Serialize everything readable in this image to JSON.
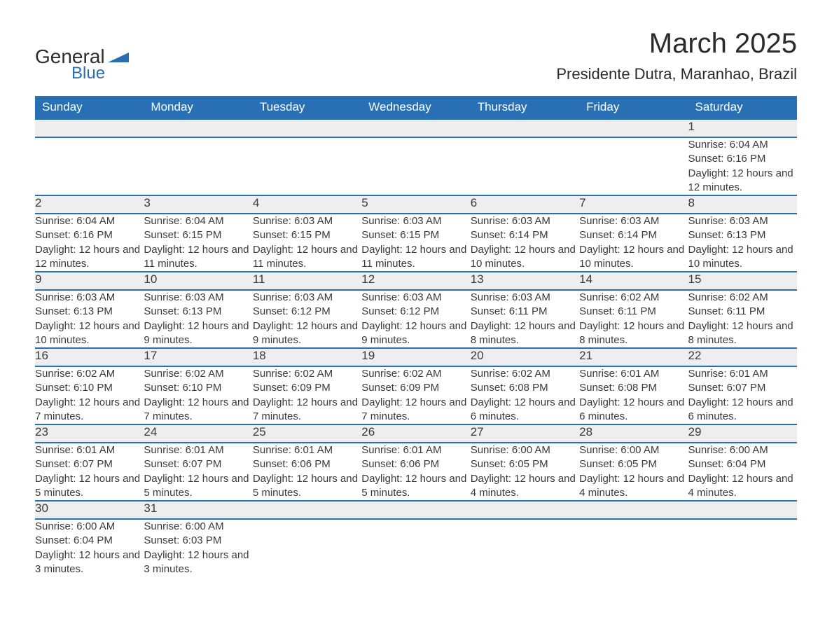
{
  "logo": {
    "text1": "General",
    "text2": "Blue",
    "color": "#296fb3"
  },
  "title": "March 2025",
  "location": "Presidente Dutra, Maranhao, Brazil",
  "header_bg": "#296fb3",
  "header_fg": "#ffffff",
  "daynum_bg": "#eeeeee",
  "text_color": "#3a3a3a",
  "border_color": "#296fb3",
  "font_family": "Arial",
  "title_fontsize": 40,
  "location_fontsize": 22,
  "header_fontsize": 17,
  "cell_fontsize": 15,
  "columns": [
    "Sunday",
    "Monday",
    "Tuesday",
    "Wednesday",
    "Thursday",
    "Friday",
    "Saturday"
  ],
  "weeks": [
    [
      null,
      null,
      null,
      null,
      null,
      null,
      {
        "n": "1",
        "sr": "6:04 AM",
        "ss": "6:16 PM",
        "dl": "12 hours and 12 minutes."
      }
    ],
    [
      {
        "n": "2",
        "sr": "6:04 AM",
        "ss": "6:16 PM",
        "dl": "12 hours and 12 minutes."
      },
      {
        "n": "3",
        "sr": "6:04 AM",
        "ss": "6:15 PM",
        "dl": "12 hours and 11 minutes."
      },
      {
        "n": "4",
        "sr": "6:03 AM",
        "ss": "6:15 PM",
        "dl": "12 hours and 11 minutes."
      },
      {
        "n": "5",
        "sr": "6:03 AM",
        "ss": "6:15 PM",
        "dl": "12 hours and 11 minutes."
      },
      {
        "n": "6",
        "sr": "6:03 AM",
        "ss": "6:14 PM",
        "dl": "12 hours and 10 minutes."
      },
      {
        "n": "7",
        "sr": "6:03 AM",
        "ss": "6:14 PM",
        "dl": "12 hours and 10 minutes."
      },
      {
        "n": "8",
        "sr": "6:03 AM",
        "ss": "6:13 PM",
        "dl": "12 hours and 10 minutes."
      }
    ],
    [
      {
        "n": "9",
        "sr": "6:03 AM",
        "ss": "6:13 PM",
        "dl": "12 hours and 10 minutes."
      },
      {
        "n": "10",
        "sr": "6:03 AM",
        "ss": "6:13 PM",
        "dl": "12 hours and 9 minutes."
      },
      {
        "n": "11",
        "sr": "6:03 AM",
        "ss": "6:12 PM",
        "dl": "12 hours and 9 minutes."
      },
      {
        "n": "12",
        "sr": "6:03 AM",
        "ss": "6:12 PM",
        "dl": "12 hours and 9 minutes."
      },
      {
        "n": "13",
        "sr": "6:03 AM",
        "ss": "6:11 PM",
        "dl": "12 hours and 8 minutes."
      },
      {
        "n": "14",
        "sr": "6:02 AM",
        "ss": "6:11 PM",
        "dl": "12 hours and 8 minutes."
      },
      {
        "n": "15",
        "sr": "6:02 AM",
        "ss": "6:11 PM",
        "dl": "12 hours and 8 minutes."
      }
    ],
    [
      {
        "n": "16",
        "sr": "6:02 AM",
        "ss": "6:10 PM",
        "dl": "12 hours and 7 minutes."
      },
      {
        "n": "17",
        "sr": "6:02 AM",
        "ss": "6:10 PM",
        "dl": "12 hours and 7 minutes."
      },
      {
        "n": "18",
        "sr": "6:02 AM",
        "ss": "6:09 PM",
        "dl": "12 hours and 7 minutes."
      },
      {
        "n": "19",
        "sr": "6:02 AM",
        "ss": "6:09 PM",
        "dl": "12 hours and 7 minutes."
      },
      {
        "n": "20",
        "sr": "6:02 AM",
        "ss": "6:08 PM",
        "dl": "12 hours and 6 minutes."
      },
      {
        "n": "21",
        "sr": "6:01 AM",
        "ss": "6:08 PM",
        "dl": "12 hours and 6 minutes."
      },
      {
        "n": "22",
        "sr": "6:01 AM",
        "ss": "6:07 PM",
        "dl": "12 hours and 6 minutes."
      }
    ],
    [
      {
        "n": "23",
        "sr": "6:01 AM",
        "ss": "6:07 PM",
        "dl": "12 hours and 5 minutes."
      },
      {
        "n": "24",
        "sr": "6:01 AM",
        "ss": "6:07 PM",
        "dl": "12 hours and 5 minutes."
      },
      {
        "n": "25",
        "sr": "6:01 AM",
        "ss": "6:06 PM",
        "dl": "12 hours and 5 minutes."
      },
      {
        "n": "26",
        "sr": "6:01 AM",
        "ss": "6:06 PM",
        "dl": "12 hours and 5 minutes."
      },
      {
        "n": "27",
        "sr": "6:00 AM",
        "ss": "6:05 PM",
        "dl": "12 hours and 4 minutes."
      },
      {
        "n": "28",
        "sr": "6:00 AM",
        "ss": "6:05 PM",
        "dl": "12 hours and 4 minutes."
      },
      {
        "n": "29",
        "sr": "6:00 AM",
        "ss": "6:04 PM",
        "dl": "12 hours and 4 minutes."
      }
    ],
    [
      {
        "n": "30",
        "sr": "6:00 AM",
        "ss": "6:04 PM",
        "dl": "12 hours and 3 minutes."
      },
      {
        "n": "31",
        "sr": "6:00 AM",
        "ss": "6:03 PM",
        "dl": "12 hours and 3 minutes."
      },
      null,
      null,
      null,
      null,
      null
    ]
  ],
  "labels": {
    "sunrise": "Sunrise: ",
    "sunset": "Sunset: ",
    "daylight": "Daylight: "
  }
}
